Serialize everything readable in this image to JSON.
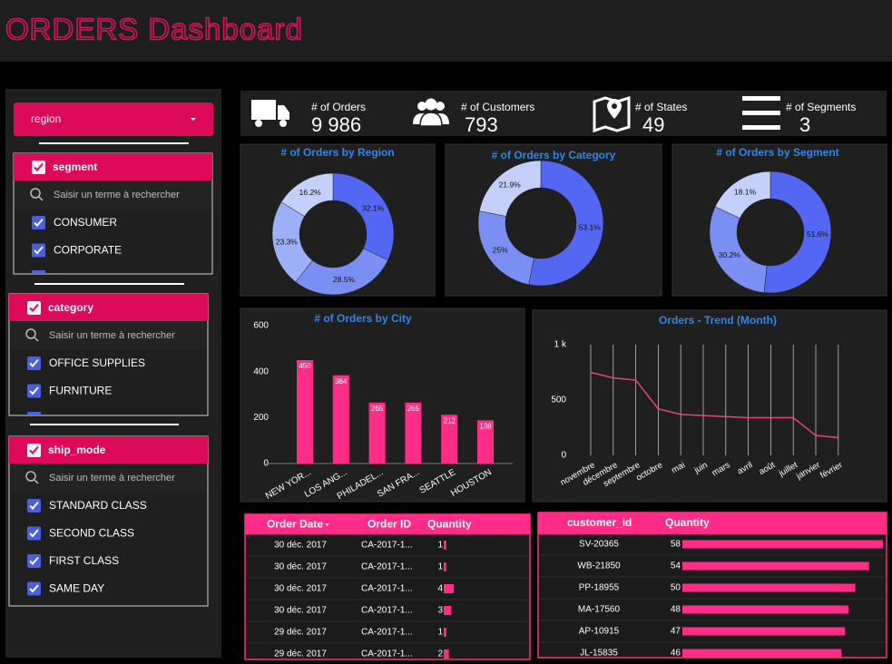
{
  "header": {
    "title": "ORDERS Dashboard"
  },
  "filters": {
    "region": "region",
    "groups": [
      {
        "name": "segment",
        "search": "Saisir un terme à rechercher",
        "items": [
          "CONSUMER",
          "CORPORATE"
        ]
      },
      {
        "name": "category",
        "search": "Saisir un terme à rechercher",
        "items": [
          "OFFICE SUPPLIES",
          "FURNITURE"
        ]
      },
      {
        "name": "ship_mode",
        "search": "Saisir un terme à rechercher",
        "items": [
          "STANDARD CLASS",
          "SECOND CLASS",
          "FIRST CLASS",
          "SAME DAY"
        ]
      }
    ]
  },
  "kpis": [
    {
      "label": "# of Orders",
      "value": "9 986"
    },
    {
      "label": "# of Customers",
      "value": "793"
    },
    {
      "label": "# of States",
      "value": "49"
    },
    {
      "label": "# of Segments",
      "value": "3"
    }
  ],
  "chart_data": [
    {
      "type": "donut",
      "title": "# of Orders by Region",
      "values": [
        32.1,
        28.5,
        23.3,
        16.2
      ],
      "value_labels": [
        "32.1%",
        "28.5%",
        "23.3%",
        "16.2%"
      ],
      "colors": [
        "#5467f2",
        "#7a8ff4",
        "#9bb0f7",
        "#c4d0fa"
      ]
    },
    {
      "type": "donut",
      "title": "# of Orders by Category",
      "values": [
        53.1,
        25,
        21.9
      ],
      "value_labels": [
        "53.1%",
        "25%",
        "21.9%"
      ],
      "colors": [
        "#5467f2",
        "#7a8ff4",
        "#c4d0fa"
      ]
    },
    {
      "type": "donut",
      "title": "# of Orders by Segment",
      "values": [
        51.6,
        30.2,
        18.1
      ],
      "value_labels": [
        "51.6%",
        "30.2%",
        "18.1%"
      ],
      "colors": [
        "#5467f2",
        "#7a8ff4",
        "#c4d0fa"
      ]
    },
    {
      "type": "bar",
      "title": "# of Orders by City",
      "categories": [
        "NEW YOR...",
        "LOS ANG...",
        "PHILADEL...",
        "SAN FRA...",
        "SEATTLE",
        "HOUSTON"
      ],
      "values": [
        450,
        384,
        265,
        265,
        212,
        188
      ],
      "color": "#ff2d87",
      "ylim": [
        0,
        600
      ],
      "yticks": [
        0,
        200,
        400,
        600
      ]
    },
    {
      "type": "line",
      "title": "Orders - Trend (Month)",
      "categories": [
        "novembre",
        "décembre",
        "septembre",
        "octobre",
        "mai",
        "juin",
        "mars",
        "avril",
        "août",
        "juillet",
        "janvier",
        "février"
      ],
      "values": [
        750,
        700,
        680,
        420,
        370,
        360,
        350,
        340,
        340,
        340,
        180,
        160
      ],
      "color": "#e5457f",
      "ylim": [
        0,
        1000
      ],
      "yticks": [
        0,
        500,
        {
          "value": 1000,
          "label": "1 k"
        }
      ]
    }
  ],
  "tables": [
    {
      "columns": [
        "Order Date",
        "Order ID",
        "Quantity"
      ],
      "rows": [
        [
          "30 déc. 2017",
          "CA-2017-1...",
          1
        ],
        [
          "30 déc. 2017",
          "CA-2017-1...",
          1
        ],
        [
          "30 déc. 2017",
          "CA-2017-1...",
          4
        ],
        [
          "30 déc. 2017",
          "CA-2017-1...",
          3
        ],
        [
          "29 déc. 2017",
          "CA-2017-1...",
          1
        ],
        [
          "29 déc. 2017",
          "CA-2017-1...",
          2
        ]
      ]
    },
    {
      "columns": [
        "customer_id",
        "Quantity"
      ],
      "rows": [
        [
          "SV-20365",
          58
        ],
        [
          "WB-21850",
          54
        ],
        [
          "PP-18955",
          50
        ],
        [
          "MA-17560",
          48
        ],
        [
          "AP-10915",
          47
        ],
        [
          "JL-15835",
          46
        ]
      ]
    }
  ]
}
